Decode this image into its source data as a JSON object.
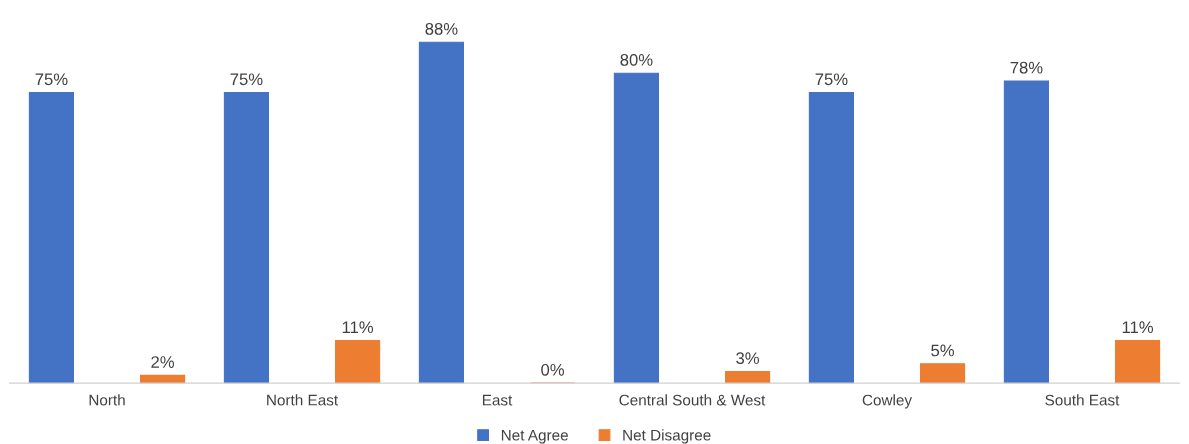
{
  "chart_data": {
    "type": "bar",
    "categories": [
      "North",
      "North East",
      "East",
      "Central South & West",
      "Cowley",
      "South East"
    ],
    "series": [
      {
        "name": "Net Agree",
        "color": "#4472c4",
        "values": [
          75,
          75,
          88,
          80,
          75,
          78
        ],
        "value_labels": [
          "75%",
          "75%",
          "88%",
          "80%",
          "75%",
          "78%"
        ]
      },
      {
        "name": "Net Disagree",
        "color": "#ed7d31",
        "values": [
          2,
          11,
          0,
          3,
          5,
          11
        ],
        "value_labels": [
          "2%",
          "11%",
          "0%",
          "3%",
          "5%",
          "11%"
        ]
      }
    ],
    "legend": "bottom"
  }
}
